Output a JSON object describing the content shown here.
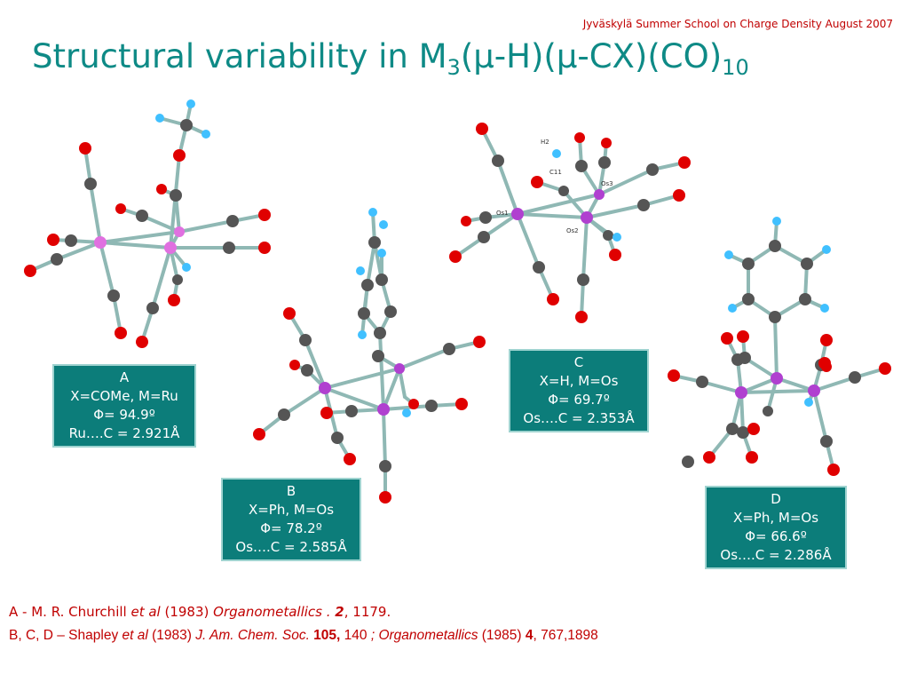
{
  "header_note": "Jyväskylä Summer School  on Charge Density August 2007",
  "title": {
    "main": "Structural variability in M",
    "sub1": "3",
    "part2": "(μ-H)(μ-CX)(CO)",
    "sub2": "10"
  },
  "structures": [
    {
      "id": "A",
      "letter": "A",
      "line1": "X=COMe, M=Ru",
      "line2": "Φ= 94.9º",
      "line3": "Ru….C = 2.921Å"
    },
    {
      "id": "B",
      "letter": "B",
      "line1": "X=Ph, M=Os",
      "line2": "Φ= 78.2º",
      "line3": "Os….C = 2.585Å"
    },
    {
      "id": "C",
      "letter": "C",
      "line1": "X=H, M=Os",
      "line2": "Φ= 69.7º",
      "line3": "Os….C = 2.353Å"
    },
    {
      "id": "D",
      "letter": "D",
      "line1": "X=Ph, M=Os",
      "line2": "Φ= 66.6º",
      "line3": "Os….C = 2.286Å"
    }
  ],
  "atom_labels_c": {
    "h2": "H2",
    "c11": "C11",
    "os1": "Os1",
    "os2": "Os2",
    "os3": "Os3"
  },
  "colors": {
    "title": "#0e8a86",
    "box": "#0c7d7a",
    "reference": "#c00000",
    "oxygen": "#e00000",
    "carbon": "#555555",
    "metal": "#b040d0",
    "hydrogen": "#40c0ff",
    "bond": "#8fb8b4"
  },
  "references": {
    "ref1": {
      "prefix": "A  -  M. R. Churchill ",
      "etal": "et al",
      "year": " (1983) ",
      "journal": "Organometallics . ",
      "vol": "2",
      "pages": ", 1179."
    },
    "ref2": {
      "prefix": "B, C, D – Shapley ",
      "etal": "et al",
      "year": "  (1983)  ",
      "journal": "J. Am. Chem. Soc.",
      "vol": " 105,",
      "pages": " 140 ",
      "sep": "; ",
      "journal2": "Organometallics",
      "year2": " (1985) ",
      "vol2": "4",
      "pages2": ", 767,1898"
    }
  }
}
